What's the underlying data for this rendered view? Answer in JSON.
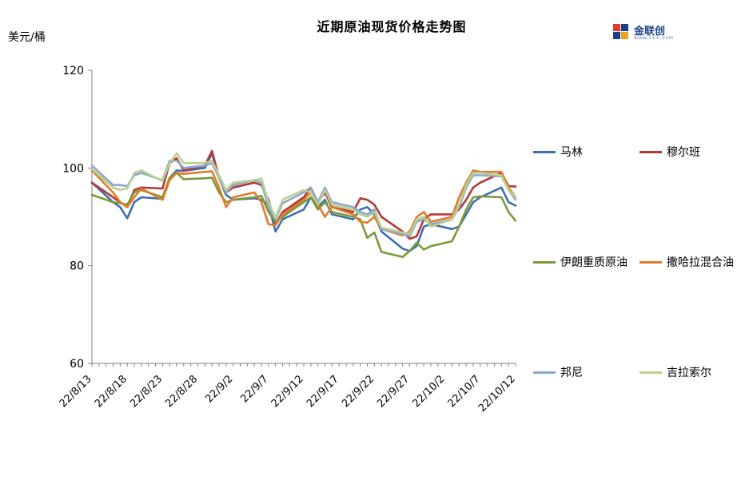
{
  "chart_data": {
    "type": "line",
    "title": "近期原油现货价格走势图",
    "ylabel": "美元/桶",
    "ylim": [
      60,
      120
    ],
    "yticks": [
      60,
      80,
      100,
      120
    ],
    "grid": false,
    "legend_position": "right",
    "x_tick_labels": [
      "22/8/13",
      "22/8/18",
      "22/8/23",
      "22/8/28",
      "22/9/2",
      "22/9/7",
      "22/9/12",
      "22/9/17",
      "22/9/22",
      "22/9/27",
      "22/10/2",
      "22/10/7",
      "22/10/12"
    ],
    "series": [
      {
        "name": "马林",
        "color": "#3d6faf",
        "points": [
          [
            "22/8/13",
            97
          ],
          [
            "22/8/16",
            93
          ],
          [
            "22/8/17",
            92
          ],
          [
            "22/8/18",
            89.7
          ],
          [
            "22/8/19",
            93
          ],
          [
            "22/8/20",
            94
          ],
          [
            "22/8/23",
            93.7
          ],
          [
            "22/8/24",
            98
          ],
          [
            "22/8/25",
            99.5
          ],
          [
            "22/8/26",
            99.4
          ],
          [
            "22/8/29",
            100
          ],
          [
            "22/8/30",
            103
          ],
          [
            "22/8/31",
            98
          ],
          [
            "22/9/1",
            94.5
          ],
          [
            "22/9/2",
            93.5
          ],
          [
            "22/9/5",
            93.8
          ],
          [
            "22/9/6",
            93.5
          ],
          [
            "22/9/7",
            92.5
          ],
          [
            "22/9/8",
            87
          ],
          [
            "22/9/9",
            89.5
          ],
          [
            "22/9/12",
            91.5
          ],
          [
            "22/9/13",
            94
          ],
          [
            "22/9/14",
            92
          ],
          [
            "22/9/15",
            93.5
          ],
          [
            "22/9/16",
            90.5
          ],
          [
            "22/9/19",
            89.5
          ],
          [
            "22/9/20",
            91.5
          ],
          [
            "22/9/21",
            92
          ],
          [
            "22/9/22",
            90.5
          ],
          [
            "22/9/23",
            87
          ],
          [
            "22/9/26",
            83.5
          ],
          [
            "22/9/27",
            83
          ],
          [
            "22/9/28",
            84
          ],
          [
            "22/9/29",
            88
          ],
          [
            "22/9/30",
            88.5
          ],
          [
            "22/10/3",
            87.5
          ],
          [
            "22/10/4",
            88
          ],
          [
            "22/10/5",
            90.5
          ],
          [
            "22/10/6",
            93
          ],
          [
            "22/10/7",
            94
          ],
          [
            "22/10/10",
            96
          ],
          [
            "22/10/11",
            93
          ],
          [
            "22/10/12",
            92.3
          ]
        ]
      },
      {
        "name": "穆尔班",
        "color": "#b23a36",
        "points": [
          [
            "22/8/13",
            97
          ],
          [
            "22/8/16",
            94
          ],
          [
            "22/8/17",
            93
          ],
          [
            "22/8/18",
            92
          ],
          [
            "22/8/19",
            95.5
          ],
          [
            "22/8/20",
            96
          ],
          [
            "22/8/23",
            95.8
          ],
          [
            "22/8/24",
            101
          ],
          [
            "22/8/25",
            102
          ],
          [
            "22/8/26",
            99.5
          ],
          [
            "22/8/29",
            100.5
          ],
          [
            "22/8/30",
            103.5
          ],
          [
            "22/8/31",
            98
          ],
          [
            "22/9/1",
            95
          ],
          [
            "22/9/2",
            96
          ],
          [
            "22/9/5",
            97
          ],
          [
            "22/9/6",
            96.5
          ],
          [
            "22/9/7",
            93.5
          ],
          [
            "22/9/8",
            88.5
          ],
          [
            "22/9/9",
            91
          ],
          [
            "22/9/12",
            94
          ],
          [
            "22/9/13",
            96
          ],
          [
            "22/9/14",
            93
          ],
          [
            "22/9/15",
            95
          ],
          [
            "22/9/16",
            92
          ],
          [
            "22/9/19",
            91
          ],
          [
            "22/9/20",
            93.8
          ],
          [
            "22/9/21",
            93.5
          ],
          [
            "22/9/22",
            92.5
          ],
          [
            "22/9/23",
            90
          ],
          [
            "22/9/26",
            87
          ],
          [
            "22/9/27",
            85.5
          ],
          [
            "22/9/28",
            86
          ],
          [
            "22/9/29",
            89.5
          ],
          [
            "22/9/30",
            90.5
          ],
          [
            "22/10/3",
            90.5
          ],
          [
            "22/10/4",
            91.5
          ],
          [
            "22/10/5",
            93.5
          ],
          [
            "22/10/6",
            96
          ],
          [
            "22/10/7",
            97
          ],
          [
            "22/10/10",
            99
          ],
          [
            "22/10/11",
            96.3
          ],
          [
            "22/10/12",
            96.2
          ]
        ]
      },
      {
        "name": "伊朗重质原油",
        "color": "#7a9a3a",
        "points": [
          [
            "22/8/13",
            94.5
          ],
          [
            "22/8/16",
            93
          ],
          [
            "22/8/17",
            92.8
          ],
          [
            "22/8/18",
            92.5
          ],
          [
            "22/8/19",
            95
          ],
          [
            "22/8/20",
            95.5
          ],
          [
            "22/8/23",
            94
          ],
          [
            "22/8/24",
            98
          ],
          [
            "22/8/25",
            99
          ],
          [
            "22/8/26",
            97.7
          ],
          [
            "22/8/29",
            97.9
          ],
          [
            "22/8/30",
            98
          ],
          [
            "22/8/31",
            95
          ],
          [
            "22/9/1",
            93
          ],
          [
            "22/9/2",
            93.5
          ],
          [
            "22/9/5",
            94
          ],
          [
            "22/9/6",
            94.3
          ],
          [
            "22/9/7",
            91
          ],
          [
            "22/9/8",
            89
          ],
          [
            "22/9/9",
            90
          ],
          [
            "22/9/12",
            93
          ],
          [
            "22/9/13",
            94
          ],
          [
            "22/9/14",
            91.5
          ],
          [
            "22/9/15",
            93
          ],
          [
            "22/9/16",
            91
          ],
          [
            "22/9/19",
            90
          ],
          [
            "22/9/20",
            89.5
          ],
          [
            "22/9/21",
            85.7
          ],
          [
            "22/9/22",
            86.8
          ],
          [
            "22/9/23",
            82.8
          ],
          [
            "22/9/26",
            81.8
          ],
          [
            "22/9/27",
            83
          ],
          [
            "22/9/28",
            84.7
          ],
          [
            "22/9/29",
            83.3
          ],
          [
            "22/9/30",
            84
          ],
          [
            "22/10/3",
            85
          ],
          [
            "22/10/4",
            88
          ],
          [
            "22/10/5",
            91.5
          ],
          [
            "22/10/6",
            94
          ],
          [
            "22/10/7",
            94.2
          ],
          [
            "22/10/10",
            94
          ],
          [
            "22/10/11",
            91
          ],
          [
            "22/10/12",
            89.2
          ]
        ]
      },
      {
        "name": "撒哈拉混合油",
        "color": "#e07b2b",
        "points": [
          [
            "22/8/13",
            99.5
          ],
          [
            "22/8/16",
            95
          ],
          [
            "22/8/17",
            93
          ],
          [
            "22/8/18",
            92
          ],
          [
            "22/8/19",
            94
          ],
          [
            "22/8/20",
            95.8
          ],
          [
            "22/8/23",
            93.5
          ],
          [
            "22/8/24",
            97.5
          ],
          [
            "22/8/25",
            99
          ],
          [
            "22/8/26",
            98.8
          ],
          [
            "22/8/29",
            99.2
          ],
          [
            "22/8/30",
            99.3
          ],
          [
            "22/8/31",
            96
          ],
          [
            "22/9/1",
            92
          ],
          [
            "22/9/2",
            94
          ],
          [
            "22/9/5",
            95
          ],
          [
            "22/9/6",
            93
          ],
          [
            "22/9/7",
            88.5
          ],
          [
            "22/9/8",
            88.3
          ],
          [
            "22/9/9",
            90.5
          ],
          [
            "22/9/12",
            93.5
          ],
          [
            "22/9/13",
            95
          ],
          [
            "22/9/14",
            92.5
          ],
          [
            "22/9/15",
            90
          ],
          [
            "22/9/16",
            92
          ],
          [
            "22/9/19",
            90.5
          ],
          [
            "22/9/20",
            89
          ],
          [
            "22/9/21",
            88.8
          ],
          [
            "22/9/22",
            90
          ],
          [
            "22/9/23",
            87.5
          ],
          [
            "22/9/26",
            86.2
          ],
          [
            "22/9/27",
            87
          ],
          [
            "22/9/28",
            90
          ],
          [
            "22/9/29",
            91
          ],
          [
            "22/9/30",
            89
          ],
          [
            "22/10/3",
            90
          ],
          [
            "22/10/4",
            94
          ],
          [
            "22/10/5",
            97
          ],
          [
            "22/10/6",
            99.5
          ],
          [
            "22/10/7",
            99.2
          ],
          [
            "22/10/10",
            99.2
          ],
          [
            "22/10/11",
            96
          ],
          [
            "22/10/12",
            94
          ]
        ]
      },
      {
        "name": "邦尼",
        "color": "#8ea5cf",
        "points": [
          [
            "22/8/13",
            100.5
          ],
          [
            "22/8/16",
            96.5
          ],
          [
            "22/8/17",
            96.5
          ],
          [
            "22/8/18",
            96.3
          ],
          [
            "22/8/19",
            98.5
          ],
          [
            "22/8/20",
            99
          ],
          [
            "22/8/23",
            97.5
          ],
          [
            "22/8/24",
            101.5
          ],
          [
            "22/8/25",
            101.5
          ],
          [
            "22/8/26",
            100
          ],
          [
            "22/8/29",
            100.5
          ],
          [
            "22/8/30",
            101
          ],
          [
            "22/8/31",
            98
          ],
          [
            "22/9/1",
            95
          ],
          [
            "22/9/2",
            96.5
          ],
          [
            "22/9/5",
            97.5
          ],
          [
            "22/9/6",
            97
          ],
          [
            "22/9/7",
            92
          ],
          [
            "22/9/8",
            89.5
          ],
          [
            "22/9/9",
            92.8
          ],
          [
            "22/9/12",
            95
          ],
          [
            "22/9/13",
            96
          ],
          [
            "22/9/14",
            93
          ],
          [
            "22/9/15",
            96
          ],
          [
            "22/9/16",
            93
          ],
          [
            "22/9/19",
            92
          ],
          [
            "22/9/20",
            91
          ],
          [
            "22/9/21",
            90.5
          ],
          [
            "22/9/22",
            91.5
          ],
          [
            "22/9/23",
            87.5
          ],
          [
            "22/9/26",
            86.5
          ],
          [
            "22/9/27",
            86
          ],
          [
            "22/9/28",
            89
          ],
          [
            "22/9/29",
            89.5
          ],
          [
            "22/9/30",
            88.5
          ],
          [
            "22/10/3",
            89.5
          ],
          [
            "22/10/4",
            92
          ],
          [
            "22/10/5",
            96
          ],
          [
            "22/10/6",
            98.5
          ],
          [
            "22/10/7",
            98.5
          ],
          [
            "22/10/10",
            98.3
          ],
          [
            "22/10/11",
            95.5
          ],
          [
            "22/10/12",
            93.5
          ]
        ]
      },
      {
        "name": "吉拉索尔",
        "color": "#b9d08e",
        "points": [
          [
            "22/8/13",
            99.8
          ],
          [
            "22/8/16",
            96
          ],
          [
            "22/8/17",
            95.5
          ],
          [
            "22/8/18",
            95.8
          ],
          [
            "22/8/19",
            99
          ],
          [
            "22/8/20",
            99.5
          ],
          [
            "22/8/23",
            97.3
          ],
          [
            "22/8/24",
            101
          ],
          [
            "22/8/25",
            103
          ],
          [
            "22/8/26",
            101
          ],
          [
            "22/8/29",
            101
          ],
          [
            "22/8/30",
            101.5
          ],
          [
            "22/8/31",
            98.5
          ],
          [
            "22/9/1",
            95.5
          ],
          [
            "22/9/2",
            97
          ],
          [
            "22/9/5",
            97.5
          ],
          [
            "22/9/6",
            97.8
          ],
          [
            "22/9/7",
            93
          ],
          [
            "22/9/8",
            89.8
          ],
          [
            "22/9/9",
            93.5
          ],
          [
            "22/9/12",
            95.5
          ],
          [
            "22/9/13",
            95
          ],
          [
            "22/9/14",
            92.5
          ],
          [
            "22/9/15",
            95.5
          ],
          [
            "22/9/16",
            92.5
          ],
          [
            "22/9/19",
            91.5
          ],
          [
            "22/9/20",
            90.5
          ],
          [
            "22/9/21",
            90
          ],
          [
            "22/9/22",
            91
          ],
          [
            "22/9/23",
            87.8
          ],
          [
            "22/9/26",
            86.8
          ],
          [
            "22/9/27",
            86.5
          ],
          [
            "22/9/28",
            89.5
          ],
          [
            "22/9/29",
            90
          ],
          [
            "22/9/30",
            88
          ],
          [
            "22/10/3",
            89.5
          ],
          [
            "22/10/4",
            92.5
          ],
          [
            "22/10/5",
            96.5
          ],
          [
            "22/10/6",
            99
          ],
          [
            "22/10/7",
            99
          ],
          [
            "22/10/10",
            98.5
          ],
          [
            "22/10/11",
            95.5
          ],
          [
            "22/10/12",
            94
          ]
        ]
      }
    ]
  },
  "logo": {
    "name": "金联创",
    "sub": "www.315i.com"
  }
}
